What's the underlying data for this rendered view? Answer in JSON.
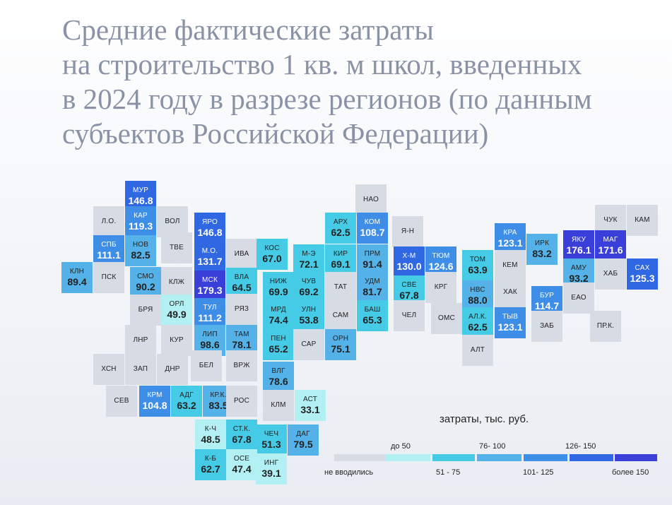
{
  "title_lines": [
    "Средние фактические затраты",
    "на строительство 1 кв. м школ, введенных",
    "в 2024 году в разрезе регионов (по данным",
    "субъектов Российской Федерации)"
  ],
  "legend": {
    "title": "затраты, тыс. руб.",
    "items": [
      {
        "label": "не вводились",
        "color": "#d7dbe3"
      },
      {
        "label": "до 50",
        "color": "#b2f0f3"
      },
      {
        "label": "51 - 75",
        "color": "#45cbe5"
      },
      {
        "label": "76- 100",
        "color": "#55b2e8"
      },
      {
        "label": "101- 125",
        "color": "#3e8ee7"
      },
      {
        "label": "126- 150",
        "color": "#3068e4"
      },
      {
        "label": "более 150",
        "color": "#3a3fd9"
      }
    ]
  },
  "colors": {
    "none": "#d7dbe3",
    "b1": "#b2f0f3",
    "b2": "#45cbe5",
    "b3": "#55b2e8",
    "b4": "#3e8ee7",
    "b5": "#3068e4",
    "b6": "#3a3fd9",
    "text_dark": "#222222",
    "text_light": "#ffffff"
  },
  "regions": [
    {
      "code": "МУР",
      "value": "146.8",
      "v": 146.8
    },
    {
      "code": "Л.О.",
      "value": "",
      "v": null
    },
    {
      "code": "КАР",
      "value": "119.3",
      "v": 119.3
    },
    {
      "code": "ВОЛ",
      "value": "",
      "v": null
    },
    {
      "code": "ЯРО",
      "value": "146.8",
      "v": 146.8
    },
    {
      "code": "НАО",
      "value": "",
      "v": null
    },
    {
      "code": "АРХ",
      "value": "62.5",
      "v": 62.5
    },
    {
      "code": "КОМ",
      "value": "108.7",
      "v": 108.7
    },
    {
      "code": "ЧУК",
      "value": "",
      "v": null
    },
    {
      "code": "КАМ",
      "value": "",
      "v": null
    },
    {
      "code": "СПБ",
      "value": "111.1",
      "v": 111.1
    },
    {
      "code": "НОВ",
      "value": "82.5",
      "v": 82.5
    },
    {
      "code": "ТВЕ",
      "value": "",
      "v": null
    },
    {
      "code": "М.О.",
      "value": "131.7",
      "v": 131.7
    },
    {
      "code": "ИВА",
      "value": "",
      "v": null
    },
    {
      "code": "КОС",
      "value": "67.0",
      "v": 67.0
    },
    {
      "code": "М-Э",
      "value": "72.1",
      "v": 72.1
    },
    {
      "code": "КИР",
      "value": "69.1",
      "v": 69.1
    },
    {
      "code": "ПРМ",
      "value": "91.4",
      "v": 91.4
    },
    {
      "code": "Я-Н",
      "value": "",
      "v": null
    },
    {
      "code": "Х-М",
      "value": "130.0",
      "v": 130.0
    },
    {
      "code": "ТЮМ",
      "value": "124.6",
      "v": 124.6
    },
    {
      "code": "ТОМ",
      "value": "63.9",
      "v": 63.9
    },
    {
      "code": "КРА",
      "value": "123.1",
      "v": 123.1
    },
    {
      "code": "КЕМ",
      "value": "",
      "v": null
    },
    {
      "code": "ИРК",
      "value": "83.2",
      "v": 83.2
    },
    {
      "code": "ЯКУ",
      "value": "176.1",
      "v": 176.1
    },
    {
      "code": "МАГ",
      "value": "171.6",
      "v": 171.6
    },
    {
      "code": "АМУ",
      "value": "93.2",
      "v": 93.2
    },
    {
      "code": "ХАБ",
      "value": "",
      "v": null
    },
    {
      "code": "САХ",
      "value": "125.3",
      "v": 125.3
    },
    {
      "code": "КЛН",
      "value": "89.4",
      "v": 89.4
    },
    {
      "code": "ПСК",
      "value": "",
      "v": null
    },
    {
      "code": "СМО",
      "value": "90.2",
      "v": 90.2
    },
    {
      "code": "КЛЖ",
      "value": "",
      "v": null
    },
    {
      "code": "МСК",
      "value": "179.3",
      "v": 179.3
    },
    {
      "code": "ВЛА",
      "value": "64.5",
      "v": 64.5
    },
    {
      "code": "НИЖ",
      "value": "69.9",
      "v": 69.9
    },
    {
      "code": "ЧУВ",
      "value": "69.2",
      "v": 69.2
    },
    {
      "code": "ТАТ",
      "value": "",
      "v": null
    },
    {
      "code": "УДМ",
      "value": "81.7",
      "v": 81.7
    },
    {
      "code": "СВЕ",
      "value": "67.8",
      "v": 67.8
    },
    {
      "code": "КРГ",
      "value": "",
      "v": null
    },
    {
      "code": "НВС",
      "value": "88.0",
      "v": 88.0
    },
    {
      "code": "ХАК",
      "value": "",
      "v": null
    },
    {
      "code": "БУР",
      "value": "114.7",
      "v": 114.7
    },
    {
      "code": "ЕАО",
      "value": "",
      "v": null
    },
    {
      "code": "БРЯ",
      "value": "",
      "v": null
    },
    {
      "code": "ОРЛ",
      "value": "49.9",
      "v": 49.9
    },
    {
      "code": "ТУЛ",
      "value": "111.2",
      "v": 111.2
    },
    {
      "code": "РЯЗ",
      "value": "",
      "v": null
    },
    {
      "code": "МРД",
      "value": "74.4",
      "v": 74.4
    },
    {
      "code": "УЛН",
      "value": "53.8",
      "v": 53.8
    },
    {
      "code": "САМ",
      "value": "",
      "v": null
    },
    {
      "code": "БАШ",
      "value": "65.3",
      "v": 65.3
    },
    {
      "code": "ЧЕЛ",
      "value": "",
      "v": null
    },
    {
      "code": "ОМС",
      "value": "",
      "v": null
    },
    {
      "code": "АЛ.К.",
      "value": "62.5",
      "v": 62.5
    },
    {
      "code": "ТЫВ",
      "value": "123.1",
      "v": 123.1
    },
    {
      "code": "ЗАБ",
      "value": "",
      "v": null
    },
    {
      "code": "ПР.К.",
      "value": "",
      "v": null
    },
    {
      "code": "ЛНР",
      "value": "",
      "v": null
    },
    {
      "code": "КУР",
      "value": "",
      "v": null
    },
    {
      "code": "ЛИП",
      "value": "98.6",
      "v": 98.6
    },
    {
      "code": "ТАМ",
      "value": "78.1",
      "v": 78.1
    },
    {
      "code": "ПЕН",
      "value": "65.2",
      "v": 65.2
    },
    {
      "code": "САР",
      "value": "",
      "v": null
    },
    {
      "code": "ОРН",
      "value": "75.1",
      "v": 75.1
    },
    {
      "code": "АЛТ",
      "value": "",
      "v": null
    },
    {
      "code": "ХСН",
      "value": "",
      "v": null
    },
    {
      "code": "ЗАП",
      "value": "",
      "v": null
    },
    {
      "code": "ДНР",
      "value": "",
      "v": null
    },
    {
      "code": "БЕЛ",
      "value": "",
      "v": null
    },
    {
      "code": "ВРЖ",
      "value": "",
      "v": null
    },
    {
      "code": "ВЛГ",
      "value": "78.6",
      "v": 78.6
    },
    {
      "code": "СЕВ",
      "value": "",
      "v": null
    },
    {
      "code": "КРМ",
      "value": "104.8",
      "v": 104.8
    },
    {
      "code": "АДГ",
      "value": "63.2",
      "v": 63.2
    },
    {
      "code": "КР.К.",
      "value": "83.5",
      "v": 83.5
    },
    {
      "code": "РОС",
      "value": "",
      "v": null
    },
    {
      "code": "КЛМ",
      "value": "",
      "v": null
    },
    {
      "code": "АСТ",
      "value": "33.1",
      "v": 33.1
    },
    {
      "code": "К-Ч",
      "value": "48.5",
      "v": 48.5
    },
    {
      "code": "СТ.К.",
      "value": "67.8",
      "v": 67.8
    },
    {
      "code": "ЧЕЧ",
      "value": "51.3",
      "v": 51.3
    },
    {
      "code": "ДАГ",
      "value": "79.5",
      "v": 79.5
    },
    {
      "code": "К-Б",
      "value": "62.7",
      "v": 62.7
    },
    {
      "code": "ОСЕ",
      "value": "47.4",
      "v": 47.4
    },
    {
      "code": "ИНГ",
      "value": "39.1",
      "v": 39.1
    }
  ]
}
